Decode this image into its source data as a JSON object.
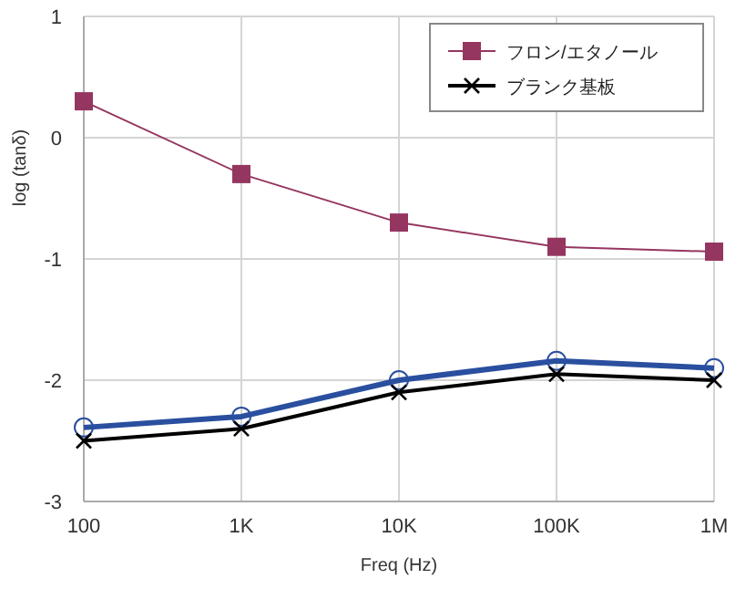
{
  "chart_data": {
    "type": "line",
    "xlabel": "Freq (Hz)",
    "ylabel": "log (tanδ)",
    "x": [
      100,
      1000,
      10000,
      100000,
      1000000
    ],
    "series": [
      {
        "name": "フロン/エタノール",
        "color": "#953660",
        "marker": "square",
        "values": [
          0.3,
          -0.3,
          -0.7,
          -0.9,
          -0.94
        ]
      },
      {
        "color": "#2a4f9f",
        "marker": "circle",
        "values": [
          -2.39,
          -2.3,
          -2.0,
          -1.84,
          -1.9
        ]
      },
      {
        "name": "ブランク基板",
        "color": "#000000",
        "marker": "cross",
        "values": [
          -2.5,
          -2.4,
          -2.1,
          -1.95,
          -2.0
        ]
      }
    ],
    "log": "x",
    "xlim": [
      100,
      1000000
    ],
    "ylim": [
      -3,
      1
    ],
    "xticks": [
      100,
      {
        "value": 1000,
        "label": "1K"
      },
      {
        "value": 10000,
        "label": "10K"
      },
      {
        "value": 100000,
        "label": "100K"
      },
      {
        "value": 1000000,
        "label": "1M"
      }
    ],
    "yticks": [
      -3,
      -2,
      -1,
      0,
      1
    ],
    "grid": true,
    "legend": "top right",
    "line_style": "solid"
  }
}
